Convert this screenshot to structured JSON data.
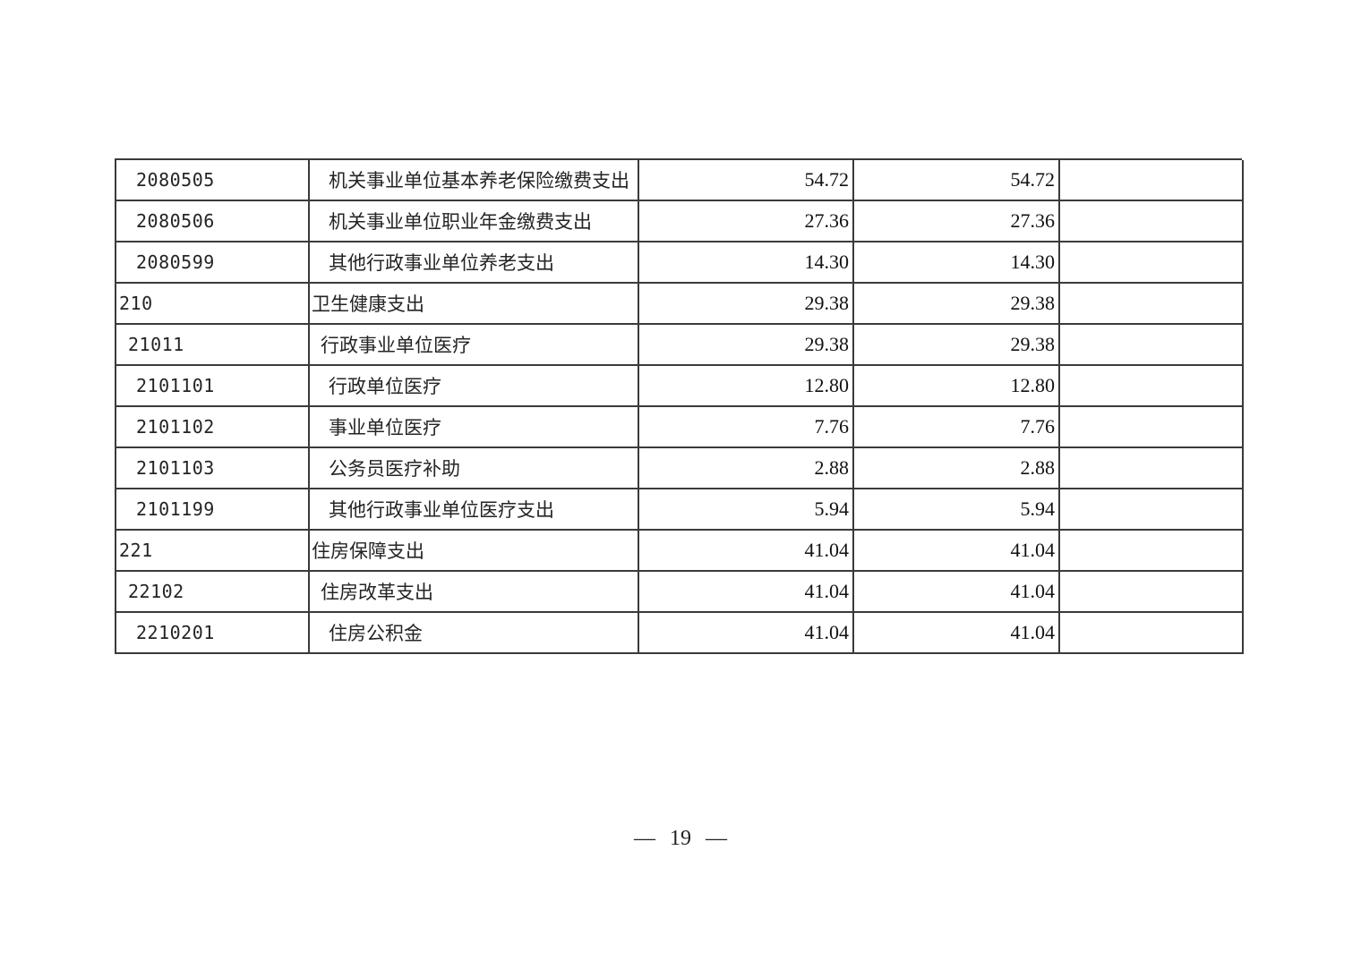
{
  "table": {
    "rows": [
      {
        "code": "2080505",
        "name": "机关事业单位基本养老保险缴费支出",
        "value1": "54.72",
        "value2": "54.72",
        "note": "",
        "level": 3
      },
      {
        "code": "2080506",
        "name": "机关事业单位职业年金缴费支出",
        "value1": "27.36",
        "value2": "27.36",
        "note": "",
        "level": 3
      },
      {
        "code": "2080599",
        "name": "其他行政事业单位养老支出",
        "value1": "14.30",
        "value2": "14.30",
        "note": "",
        "level": 3
      },
      {
        "code": "210",
        "name": "卫生健康支出",
        "value1": "29.38",
        "value2": "29.38",
        "note": "",
        "level": 1
      },
      {
        "code": "21011",
        "name": "行政事业单位医疗",
        "value1": "29.38",
        "value2": "29.38",
        "note": "",
        "level": 2
      },
      {
        "code": "2101101",
        "name": "行政单位医疗",
        "value1": "12.80",
        "value2": "12.80",
        "note": "",
        "level": 3
      },
      {
        "code": "2101102",
        "name": "事业单位医疗",
        "value1": "7.76",
        "value2": "7.76",
        "note": "",
        "level": 3
      },
      {
        "code": "2101103",
        "name": "公务员医疗补助",
        "value1": "2.88",
        "value2": "2.88",
        "note": "",
        "level": 3
      },
      {
        "code": "2101199",
        "name": "其他行政事业单位医疗支出",
        "value1": "5.94",
        "value2": "5.94",
        "note": "",
        "level": 3
      },
      {
        "code": "221",
        "name": "住房保障支出",
        "value1": "41.04",
        "value2": "41.04",
        "note": "",
        "level": 1
      },
      {
        "code": "22102",
        "name": "住房改革支出",
        "value1": "41.04",
        "value2": "41.04",
        "note": "",
        "level": 2
      },
      {
        "code": "2210201",
        "name": "住房公积金",
        "value1": "41.04",
        "value2": "41.04",
        "note": "",
        "level": 3
      }
    ]
  },
  "footer": {
    "dash": "—",
    "page_number": "19"
  }
}
